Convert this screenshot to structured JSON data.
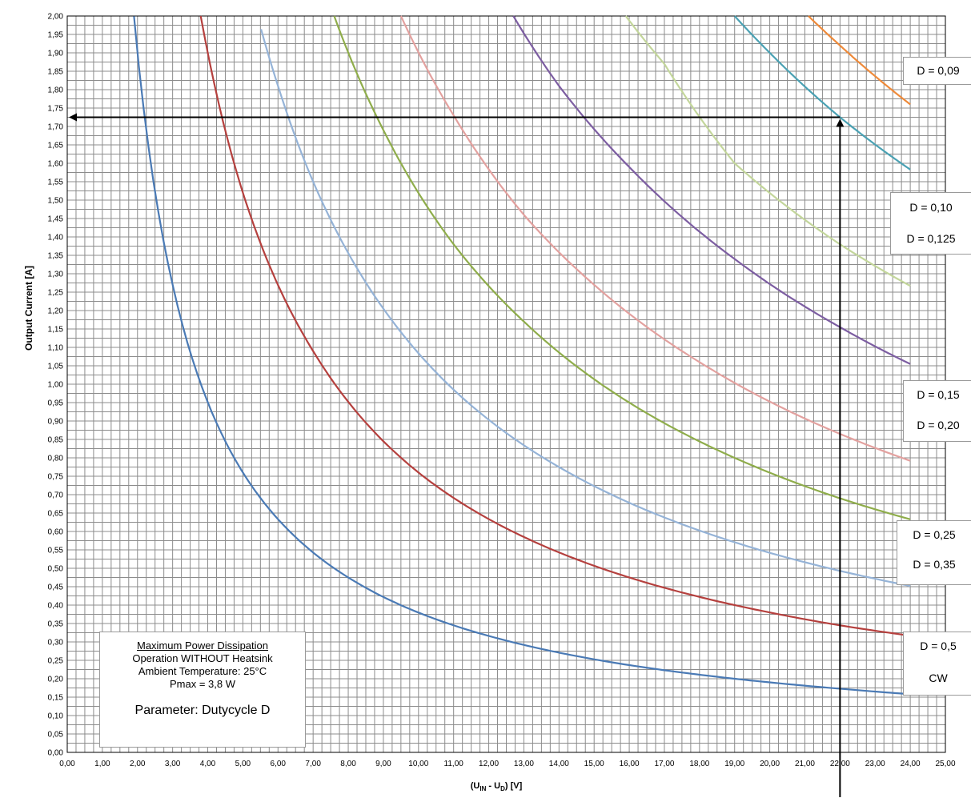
{
  "chart_data": {
    "type": "line",
    "xlabel": "(U",
    "xlabel_sub1": "IN",
    "xlabel_mid": " - U",
    "xlabel_sub2": "D",
    "xlabel_end": ") [V]",
    "ylabel": "Output Current [A]",
    "xlim": [
      0,
      25
    ],
    "ylim": [
      0,
      2
    ],
    "grid": true,
    "x_ticks": [
      "0,00",
      "1,00",
      "2,00",
      "3,00",
      "4,00",
      "5,00",
      "6,00",
      "7,00",
      "8,00",
      "9,00",
      "10,00",
      "11,00",
      "12,00",
      "13,00",
      "14,00",
      "15,00",
      "16,00",
      "17,00",
      "18,00",
      "19,00",
      "20,00",
      "21,00",
      "22,00",
      "23,00",
      "24,00",
      "25,00"
    ],
    "y_ticks": [
      "0,00",
      "0,05",
      "0,10",
      "0,15",
      "0,20",
      "0,25",
      "0,30",
      "0,35",
      "0,40",
      "0,45",
      "0,50",
      "0,55",
      "0,60",
      "0,65",
      "0,70",
      "0,75",
      "0,80",
      "0,85",
      "0,90",
      "0,95",
      "1,00",
      "1,05",
      "1,10",
      "1,15",
      "1,20",
      "1,25",
      "1,30",
      "1,35",
      "1,40",
      "1,45",
      "1,50",
      "1,55",
      "1,60",
      "1,65",
      "1,70",
      "1,75",
      "1,80",
      "1,85",
      "1,90",
      "1,95",
      "2,00"
    ],
    "series": [
      {
        "color": "#4a7ab5",
        "x_start": 1.9,
        "x_end": 24,
        "points": [
          [
            2,
            1.9
          ],
          [
            3,
            1.27
          ],
          [
            5,
            0.76
          ],
          [
            8,
            0.475
          ],
          [
            11,
            0.345
          ],
          [
            16,
            0.237
          ],
          [
            19,
            0.2
          ],
          [
            22,
            0.173
          ],
          [
            24,
            0.158
          ]
        ]
      },
      {
        "color": "#b5403e",
        "x_start": 3.8,
        "x_end": 24,
        "points": [
          [
            4,
            1.9
          ],
          [
            5,
            1.52
          ],
          [
            7,
            1.09
          ],
          [
            9,
            0.845
          ],
          [
            10,
            0.76
          ],
          [
            13,
            0.585
          ],
          [
            16,
            0.475
          ],
          [
            20,
            0.38
          ],
          [
            22,
            0.345
          ],
          [
            24,
            0.317
          ]
        ]
      },
      {
        "color": "#95b3d7",
        "x_start": 5.4,
        "x_end": 24,
        "points": [
          [
            5.5,
            1.97
          ],
          [
            6,
            1.81
          ],
          [
            7,
            1.55
          ],
          [
            9,
            1.205
          ],
          [
            11,
            0.985
          ],
          [
            14,
            0.775
          ],
          [
            17,
            0.638
          ],
          [
            20,
            0.542
          ],
          [
            22,
            0.493
          ],
          [
            24,
            0.452
          ]
        ]
      },
      {
        "color": "#8fad4b",
        "x_start": 7.6,
        "x_end": 24,
        "points": [
          [
            7.6,
            2.0
          ],
          [
            9,
            1.69
          ],
          [
            11,
            1.38
          ],
          [
            13,
            1.17
          ],
          [
            16,
            0.95
          ],
          [
            19,
            0.8
          ],
          [
            22,
            0.69
          ],
          [
            24,
            0.633
          ]
        ]
      },
      {
        "color": "#e3a19f",
        "x_start": 9.5,
        "x_end": 24,
        "points": [
          [
            9.5,
            2.0
          ],
          [
            11,
            1.73
          ],
          [
            13,
            1.46
          ],
          [
            15,
            1.27
          ],
          [
            18,
            1.06
          ],
          [
            22,
            0.865
          ],
          [
            24,
            0.792
          ]
        ]
      },
      {
        "color": "#7d5ea2",
        "x_start": 12.7,
        "x_end": 24,
        "points": [
          [
            12.7,
            2.0
          ],
          [
            14,
            1.81
          ],
          [
            16,
            1.59
          ],
          [
            19,
            1.34
          ],
          [
            22,
            1.155
          ],
          [
            24,
            1.055
          ]
        ]
      },
      {
        "color": "#c3d69b",
        "x_start": 15.9,
        "x_end": 24,
        "points": [
          [
            15.9,
            2.0
          ],
          [
            17,
            1.87
          ],
          [
            19,
            1.6
          ],
          [
            22,
            1.38
          ],
          [
            24,
            1.267
          ]
        ]
      },
      {
        "color": "#4aa1b3",
        "x_start": 19.0,
        "x_end": 24,
        "points": [
          [
            19,
            2.0
          ],
          [
            20,
            1.9
          ],
          [
            22,
            1.725
          ],
          [
            24,
            1.583
          ]
        ]
      },
      {
        "color": "#ee8a3a",
        "x_start": 21.1,
        "x_end": 24,
        "points": [
          [
            21.1,
            2.0
          ],
          [
            22,
            1.92
          ],
          [
            24,
            1.76
          ]
        ]
      }
    ],
    "reading_arrows": {
      "x": 22,
      "y": 1.725,
      "color": "#000000"
    },
    "labels": [
      {
        "lines": [
          "D = 0,09"
        ]
      },
      {
        "lines": [
          "D = 0,10",
          "D = 0,125"
        ]
      },
      {
        "lines": [
          "D = 0,15",
          "D = 0,20"
        ]
      },
      {
        "lines": [
          "D = 0,25",
          "D = 0,35"
        ]
      },
      {
        "lines": [
          "D = 0,5",
          "CW"
        ]
      }
    ],
    "info_box": {
      "line1": "Maximum  Power Dissipation",
      "line2": "Operation  WITHOUT  Heatsink",
      "line3": "Ambient  Temperature:  25°C",
      "line4": "Pmax  = 3,8 W",
      "param": "Parameter: Dutycycle D"
    }
  }
}
